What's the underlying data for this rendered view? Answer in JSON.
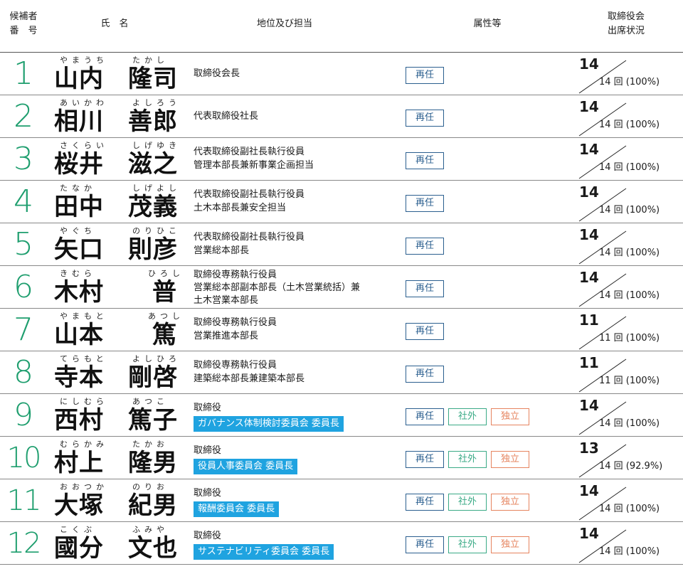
{
  "header": {
    "candidate_no": [
      "候補者",
      "番　号"
    ],
    "name": "氏　名",
    "position": "地位及び担当",
    "attributes": "属性等",
    "attendance": [
      "取締役会",
      "出席状況"
    ]
  },
  "badges": {
    "reappoint": "再任",
    "outside": "社外",
    "independent": "独立"
  },
  "attendance_unit": "回",
  "colors": {
    "number": "#1e9e6e",
    "reappoint": "#2b5f8f",
    "outside": "#3aaa86",
    "independent": "#e6845f",
    "committee_bg": "#1fa3e0"
  },
  "candidates": [
    {
      "no": "1",
      "surname_ruby": "やまうち",
      "surname": "山内",
      "given_ruby": "たかし",
      "given": "隆司",
      "position": [
        "取締役会長"
      ],
      "committee": "",
      "outside": false,
      "attended": "14",
      "total": "14",
      "rate": "(100%)"
    },
    {
      "no": "2",
      "surname_ruby": "あいかわ",
      "surname": "相川",
      "given_ruby": "よしろう",
      "given": "善郎",
      "position": [
        "代表取締役社長"
      ],
      "committee": "",
      "outside": false,
      "attended": "14",
      "total": "14",
      "rate": "(100%)"
    },
    {
      "no": "3",
      "surname_ruby": "さくらい",
      "surname": "桜井",
      "given_ruby": "しげゆき",
      "given": "滋之",
      "position": [
        "代表取締役副社長執行役員",
        "管理本部長兼新事業企画担当"
      ],
      "committee": "",
      "outside": false,
      "attended": "14",
      "total": "14",
      "rate": "(100%)"
    },
    {
      "no": "4",
      "surname_ruby": "たなか",
      "surname": "田中",
      "given_ruby": "しげよし",
      "given": "茂義",
      "position": [
        "代表取締役副社長執行役員",
        "土木本部長兼安全担当"
      ],
      "committee": "",
      "outside": false,
      "attended": "14",
      "total": "14",
      "rate": "(100%)"
    },
    {
      "no": "5",
      "surname_ruby": "やぐち",
      "surname": "矢口",
      "given_ruby": "のりひこ",
      "given": "則彦",
      "position": [
        "代表取締役副社長執行役員",
        "営業総本部長"
      ],
      "committee": "",
      "outside": false,
      "attended": "14",
      "total": "14",
      "rate": "(100%)"
    },
    {
      "no": "6",
      "surname_ruby": "きむら",
      "surname": "木村",
      "given_ruby": "ひろし",
      "given": "普",
      "position": [
        "取締役専務執行役員",
        "営業総本部副本部長（土木営業統括）兼",
        "土木営業本部長"
      ],
      "committee": "",
      "outside": false,
      "attended": "14",
      "total": "14",
      "rate": "(100%)"
    },
    {
      "no": "7",
      "surname_ruby": "やまもと",
      "surname": "山本",
      "given_ruby": "あつし",
      "given": "篤",
      "position": [
        "取締役専務執行役員",
        "営業推進本部長"
      ],
      "committee": "",
      "outside": false,
      "attended": "11",
      "total": "11",
      "rate": "(100%)"
    },
    {
      "no": "8",
      "surname_ruby": "てらもと",
      "surname": "寺本",
      "given_ruby": "よしひろ",
      "given": "剛啓",
      "position": [
        "取締役専務執行役員",
        "建築総本部長兼建築本部長"
      ],
      "committee": "",
      "outside": false,
      "attended": "11",
      "total": "11",
      "rate": "(100%)"
    },
    {
      "no": "9",
      "surname_ruby": "にしむら",
      "surname": "西村",
      "given_ruby": "あつこ",
      "given": "篤子",
      "position": [
        "取締役"
      ],
      "committee": "ガバナンス体制検討委員会 委員長",
      "outside": true,
      "attended": "14",
      "total": "14",
      "rate": "(100%)"
    },
    {
      "no": "10",
      "surname_ruby": "むらかみ",
      "surname": "村上",
      "given_ruby": "たかお",
      "given": "隆男",
      "position": [
        "取締役"
      ],
      "committee": "役員人事委員会 委員長",
      "outside": true,
      "attended": "13",
      "total": "14",
      "rate": "(92.9%)"
    },
    {
      "no": "11",
      "surname_ruby": "おおつか",
      "surname": "大塚",
      "given_ruby": "のりお",
      "given": "紀男",
      "position": [
        "取締役"
      ],
      "committee": "報酬委員会 委員長",
      "outside": true,
      "attended": "14",
      "total": "14",
      "rate": "(100%)"
    },
    {
      "no": "12",
      "surname_ruby": "こくぶ",
      "surname": "國分",
      "given_ruby": "ふみや",
      "given": "文也",
      "position": [
        "取締役"
      ],
      "committee": "サステナビリティ委員会 委員長",
      "outside": true,
      "attended": "14",
      "total": "14",
      "rate": "(100%)"
    }
  ]
}
